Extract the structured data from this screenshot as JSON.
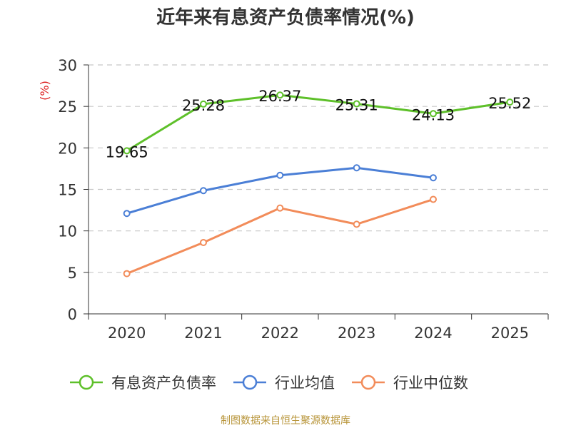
{
  "chart_data": {
    "type": "line",
    "title": "近年来有息资产负债率情况(%)",
    "ylabel": "(%)",
    "xlabel": "",
    "ylim": [
      0,
      30
    ],
    "yticks": [
      0,
      5,
      10,
      15,
      20,
      25,
      30
    ],
    "categories": [
      "2020",
      "2021",
      "2022",
      "2023",
      "2024",
      "2025"
    ],
    "grid": true,
    "legend_position": "bottom",
    "series": [
      {
        "name": "有息资产负债率",
        "color": "#5ec02a",
        "values": [
          19.65,
          25.28,
          26.37,
          25.31,
          24.13,
          25.52
        ],
        "labels": [
          "19.65",
          "25.28",
          "26.37",
          "25.31",
          "24.13",
          "25.52"
        ]
      },
      {
        "name": "行业均值",
        "color": "#4b7fd6",
        "values": [
          12.1,
          14.85,
          16.7,
          17.6,
          16.4,
          null
        ]
      },
      {
        "name": "行业中位数",
        "color": "#f28c5a",
        "values": [
          4.85,
          8.6,
          12.75,
          10.8,
          13.8,
          null
        ]
      }
    ]
  },
  "source": "制图数据来自恒生聚源数据库"
}
